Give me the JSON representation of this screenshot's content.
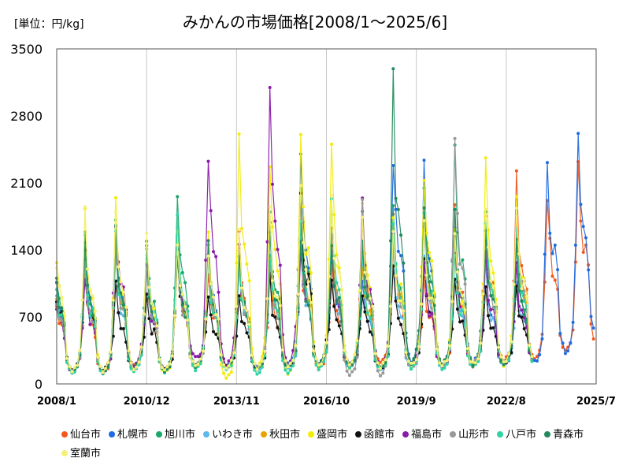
{
  "chart_data": {
    "type": "line",
    "title": "みかんの市場価格[2008/1～2025/6]",
    "unit_label": "[単位：円/kg]",
    "ylim": [
      0,
      3500
    ],
    "yticks": [
      0,
      700,
      1400,
      2100,
      2800,
      3500
    ],
    "xlim": [
      "2008/1",
      "2025/7"
    ],
    "xticks": [
      "2008/1",
      "2010/12",
      "2013/11",
      "2016/10",
      "2019/9",
      "2022/8",
      "2025/7"
    ],
    "grid": "vertical",
    "legend_position": "bottom",
    "series": [
      {
        "name": "仙台市",
        "color": "#f4581c",
        "peaks": [
          1150,
          1480,
          1250,
          1420,
          1250,
          1500,
          1150,
          1500,
          1200,
          1600,
          1650,
          1150,
          1750,
          1800,
          2050,
          2050,
          2350
        ],
        "troughs": [
          120,
          190,
          140,
          170,
          180,
          170,
          190,
          160,
          200,
          220,
          200,
          190,
          190,
          230,
          250,
          340,
          420
        ]
      },
      {
        "name": "札幌市",
        "color": "#1f6be0",
        "peaks": [
          1450,
          1600,
          1350,
          1400,
          1500,
          1350,
          1600,
          2400,
          1400,
          1100,
          2480,
          2200,
          1700,
          1300,
          1700,
          2450,
          2640
        ],
        "troughs": [
          130,
          160,
          130,
          200,
          170,
          170,
          200,
          200,
          200,
          170,
          230,
          180,
          220,
          200,
          230,
          330,
          480
        ]
      },
      {
        "name": "旭川市",
        "color": "#18a86a",
        "peaks": [
          1500,
          1650,
          1500,
          1900,
          1350,
          1300,
          1850,
          2050,
          1600,
          1750,
          1750,
          2100,
          2400,
          1700,
          1400
        ],
        "troughs": [
          120,
          160,
          150,
          190,
          170,
          150,
          190,
          200,
          180,
          170,
          190,
          190,
          200,
          220,
          230
        ]
      },
      {
        "name": "いわき市",
        "color": "#5bb8ea",
        "peaks": [
          1300,
          1400,
          1300,
          1450,
          1350,
          1250,
          1300,
          1550,
          1500,
          1300,
          1400,
          1450,
          1400,
          1200,
          1150
        ],
        "troughs": [
          120,
          140,
          130,
          170,
          170,
          150,
          160,
          180,
          160,
          140,
          170,
          170,
          190,
          210,
          220
        ]
      },
      {
        "name": "秋田市",
        "color": "#e8a300",
        "peaks": [
          1250,
          1500,
          1350,
          1350,
          1300,
          1450,
          1400,
          1700,
          1550,
          1300,
          1600,
          1700,
          1550,
          1700,
          1800
        ],
        "troughs": [
          130,
          160,
          140,
          180,
          170,
          160,
          180,
          190,
          190,
          170,
          190,
          200,
          210,
          230,
          240
        ]
      },
      {
        "name": "盛岡市",
        "color": "#f2ec06",
        "peaks": [
          1750,
          1850,
          1400,
          1500,
          1550,
          2660,
          2450,
          2550,
          2500,
          1900,
          1800,
          2300,
          1700,
          2180,
          1900
        ],
        "troughs": [
          120,
          150,
          120,
          160,
          60,
          150,
          100,
          170,
          170,
          160,
          190,
          180,
          200,
          200,
          220
        ]
      },
      {
        "name": "函館市",
        "color": "#111111",
        "peaks": [
          1300,
          1000,
          950,
          1350,
          950,
          1000,
          1100,
          2000,
          1150,
          1000,
          1150,
          1200,
          1100,
          1000,
          1050
        ],
        "troughs": [
          150,
          160,
          150,
          200,
          180,
          170,
          190,
          200,
          190,
          170,
          200,
          200,
          210,
          220,
          230
        ]
      },
      {
        "name": "福島市",
        "color": "#8a1aa8",
        "peaks": [
          1150,
          1800,
          1250,
          1350,
          2460,
          1400,
          2930,
          1400,
          1450,
          2000,
          1650,
          1300,
          1400,
          1300,
          1200
        ],
        "troughs": [
          130,
          170,
          140,
          270,
          180,
          170,
          200,
          200,
          190,
          170,
          200,
          190,
          210,
          220,
          240
        ]
      },
      {
        "name": "山形市",
        "color": "#999999",
        "peaks": [
          1300,
          1450,
          1300,
          1350,
          1350,
          1350,
          1350,
          1600,
          1600,
          1780,
          1650,
          1550,
          2420,
          1550,
          1750
        ],
        "troughs": [
          130,
          150,
          140,
          180,
          170,
          160,
          180,
          190,
          90,
          90,
          160,
          180,
          200,
          210,
          230
        ]
      },
      {
        "name": "八戸市",
        "color": "#2ed4a4",
        "peaks": [
          1400,
          1500,
          1450,
          1750,
          1350,
          1350,
          1450,
          1650,
          1850,
          1300,
          1700,
          1700,
          1350,
          1800,
          1700
        ],
        "troughs": [
          110,
          130,
          120,
          150,
          140,
          100,
          110,
          150,
          180,
          150,
          170,
          150,
          180,
          190,
          200
        ]
      },
      {
        "name": "青森市",
        "color": "#238a5e",
        "peaks": [
          1500,
          1600,
          1400,
          1350,
          1400,
          1400,
          1550,
          1600,
          1550,
          1500,
          3110,
          1750,
          1800,
          1600,
          1400
        ],
        "troughs": [
          120,
          160,
          130,
          190,
          160,
          160,
          180,
          200,
          190,
          170,
          200,
          200,
          200,
          220,
          240
        ]
      },
      {
        "name": "室蘭市",
        "color": "#f5f07a",
        "peaks": [
          1700,
          1750,
          1450,
          1500,
          1450,
          1500,
          1700,
          2000,
          2100,
          1800,
          1550,
          1700,
          1600,
          2000,
          1850
        ],
        "troughs": [
          130,
          160,
          140,
          180,
          170,
          160,
          180,
          190,
          190,
          170,
          200,
          190,
          210,
          220,
          230
        ]
      }
    ]
  }
}
